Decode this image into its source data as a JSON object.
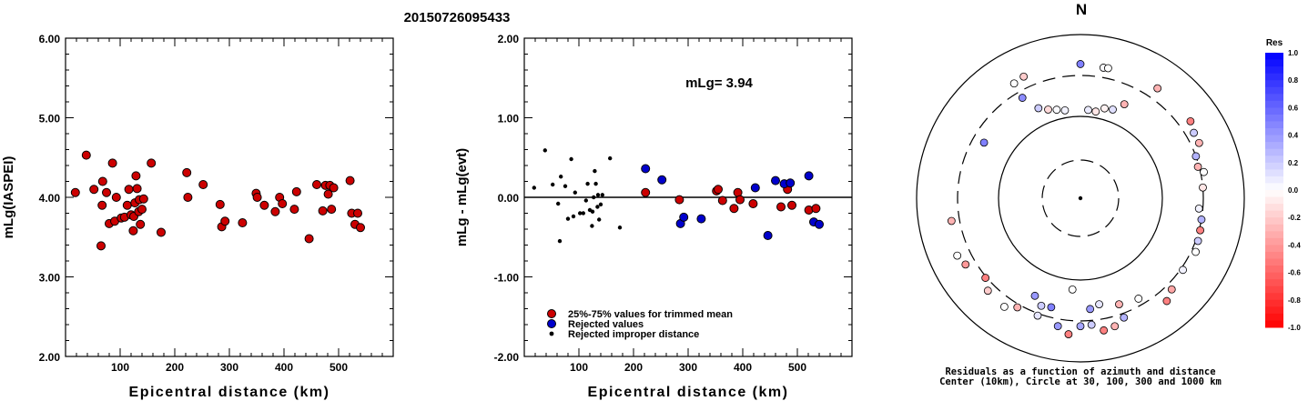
{
  "event_id": "20150726095433",
  "colors": {
    "trimmed": "#cc0000",
    "rejected": "#0000cc",
    "improper": "#000000"
  },
  "chart_data": [
    {
      "type": "scatter",
      "ylabel": "mLg(IASPEI)",
      "xlabel": "Epicentral distance (km)",
      "xlim": [
        0,
        600
      ],
      "ylim": [
        2.0,
        6.0
      ],
      "xticks": [
        "100",
        "200",
        "300",
        "400",
        "500"
      ],
      "yticks": [
        "2.00",
        "3.00",
        "4.00",
        "5.00",
        "6.00"
      ],
      "points": [
        [
          18,
          4.06
        ],
        [
          38,
          4.53
        ],
        [
          52,
          4.1
        ],
        [
          65,
          3.39
        ],
        [
          67,
          3.9
        ],
        [
          68,
          4.2
        ],
        [
          75,
          4.06
        ],
        [
          80,
          3.67
        ],
        [
          86,
          4.43
        ],
        [
          90,
          3.7
        ],
        [
          93,
          4.0
        ],
        [
          102,
          3.74
        ],
        [
          108,
          3.75
        ],
        [
          113,
          3.9
        ],
        [
          116,
          4.1
        ],
        [
          120,
          3.78
        ],
        [
          124,
          3.58
        ],
        [
          125,
          3.76
        ],
        [
          127,
          3.93
        ],
        [
          129,
          4.27
        ],
        [
          131,
          4.11
        ],
        [
          134,
          3.82
        ],
        [
          135,
          3.97
        ],
        [
          137,
          3.66
        ],
        [
          140,
          3.85
        ],
        [
          143,
          3.98
        ],
        [
          157,
          4.43
        ],
        [
          175,
          3.56
        ],
        [
          222,
          4.31
        ],
        [
          224,
          4.0
        ],
        [
          252,
          4.16
        ],
        [
          283,
          3.91
        ],
        [
          286,
          3.63
        ],
        [
          292,
          3.7
        ],
        [
          324,
          3.68
        ],
        [
          349,
          4.05
        ],
        [
          351,
          4.0
        ],
        [
          364,
          3.9
        ],
        [
          384,
          3.82
        ],
        [
          392,
          4.0
        ],
        [
          397,
          3.92
        ],
        [
          419,
          3.85
        ],
        [
          423,
          4.07
        ],
        [
          446,
          3.48
        ],
        [
          460,
          4.16
        ],
        [
          471,
          3.83
        ],
        [
          476,
          4.15
        ],
        [
          481,
          4.04
        ],
        [
          484,
          4.15
        ],
        [
          487,
          3.85
        ],
        [
          491,
          4.12
        ],
        [
          521,
          4.21
        ],
        [
          524,
          3.8
        ],
        [
          530,
          3.66
        ],
        [
          535,
          3.8
        ],
        [
          540,
          3.62
        ]
      ]
    },
    {
      "type": "scatter",
      "ylabel": "mLg - mLg(evt)",
      "xlabel": "Epicentral distance (km)",
      "xlim": [
        0,
        600
      ],
      "ylim": [
        -2.0,
        2.0
      ],
      "xticks": [
        "100",
        "200",
        "300",
        "400",
        "500"
      ],
      "yticks": [
        "-2.00",
        "-1.00",
        "0.00",
        "1.00",
        "2.00"
      ],
      "annotation": "mLg= 3.94",
      "series": [
        {
          "name": "25%-75% values for trimmed mean",
          "points": [
            [
              222,
              0.06
            ],
            [
              284,
              -0.03
            ],
            [
              352,
              0.08
            ],
            [
              355,
              0.1
            ],
            [
              363,
              -0.04
            ],
            [
              384,
              -0.14
            ],
            [
              391,
              0.06
            ],
            [
              395,
              -0.03
            ],
            [
              419,
              -0.08
            ],
            [
              470,
              -0.12
            ],
            [
              480,
              0.16
            ],
            [
              482,
              0.1
            ],
            [
              490,
              -0.1
            ],
            [
              521,
              -0.16
            ],
            [
              534,
              -0.14
            ]
          ]
        },
        {
          "name": "Rejected values",
          "points": [
            [
              222,
              0.36
            ],
            [
              252,
              0.22
            ],
            [
              286,
              -0.33
            ],
            [
              292,
              -0.25
            ],
            [
              324,
              -0.27
            ],
            [
              423,
              0.12
            ],
            [
              446,
              -0.48
            ],
            [
              460,
              0.21
            ],
            [
              476,
              0.17
            ],
            [
              487,
              0.18
            ],
            [
              521,
              0.27
            ],
            [
              530,
              -0.31
            ],
            [
              540,
              -0.34
            ]
          ]
        },
        {
          "name": "Rejected improper distance",
          "points": [
            [
              18,
              0.12
            ],
            [
              38,
              0.59
            ],
            [
              52,
              0.16
            ],
            [
              62,
              -0.08
            ],
            [
              65,
              -0.55
            ],
            [
              67,
              0.26
            ],
            [
              75,
              0.14
            ],
            [
              80,
              -0.27
            ],
            [
              86,
              0.48
            ],
            [
              90,
              -0.24
            ],
            [
              93,
              0.06
            ],
            [
              102,
              -0.2
            ],
            [
              108,
              -0.2
            ],
            [
              113,
              -0.04
            ],
            [
              116,
              0.17
            ],
            [
              120,
              -0.16
            ],
            [
              124,
              -0.36
            ],
            [
              125,
              -0.18
            ],
            [
              127,
              0.0
            ],
            [
              129,
              0.33
            ],
            [
              131,
              0.17
            ],
            [
              134,
              -0.12
            ],
            [
              135,
              0.03
            ],
            [
              137,
              -0.28
            ],
            [
              140,
              -0.09
            ],
            [
              143,
              0.03
            ],
            [
              157,
              0.49
            ],
            [
              175,
              -0.38
            ]
          ]
        }
      ]
    },
    {
      "type": "scatter",
      "title": "N",
      "caption_line1": "Residuals as a function of azimuth and distance",
      "caption_line2": "Center (10km), Circle at 30, 100, 300 and 1000 km",
      "colorbar_title": "Res",
      "colorbar_ticks": [
        "1.0",
        "0.8",
        "0.6",
        "0.4",
        "0.2",
        "0.0",
        "-0.2",
        "-0.4",
        "-0.6",
        "-0.8",
        "-1.0"
      ],
      "rings_km": [
        30,
        100,
        300,
        1000
      ],
      "points_azimuth_distance_residual": [
        [
          5,
          120,
          0.08
        ],
        [
          10,
          118,
          -0.1
        ],
        [
          350,
          122,
          0.05
        ],
        [
          345,
          130,
          0.02
        ],
        [
          15,
          135,
          -0.05
        ],
        [
          20,
          140,
          0.12
        ],
        [
          340,
          140,
          -0.15
        ],
        [
          335,
          160,
          0.2
        ],
        [
          25,
          180,
          -0.3
        ],
        [
          330,
          250,
          0.45
        ],
        [
          300,
          220,
          0.5
        ],
        [
          0,
          420,
          0.5
        ],
        [
          10,
          400,
          0.02
        ],
        [
          12,
          405,
          0.0
        ],
        [
          330,
          400,
          0.0
        ],
        [
          335,
          420,
          -0.2
        ],
        [
          35,
          420,
          -0.3
        ],
        [
          55,
          420,
          -0.5
        ],
        [
          60,
          380,
          0.2
        ],
        [
          65,
          380,
          -0.3
        ],
        [
          70,
          300,
          0.3
        ],
        [
          75,
          290,
          -0.3
        ],
        [
          78,
          330,
          0.0
        ],
        [
          85,
          300,
          -0.1
        ],
        [
          95,
          270,
          0.05
        ],
        [
          100,
          300,
          0.3
        ],
        [
          105,
          310,
          -0.5
        ],
        [
          110,
          320,
          0.2
        ],
        [
          115,
          340,
          0.0
        ],
        [
          125,
          320,
          0.05
        ],
        [
          135,
          360,
          -0.35
        ],
        [
          140,
          420,
          -0.5
        ],
        [
          160,
          340,
          0.3
        ],
        [
          165,
          400,
          -0.3
        ],
        [
          170,
          420,
          -0.5
        ],
        [
          175,
          340,
          0.2
        ],
        [
          180,
          350,
          0.35
        ],
        [
          185,
          450,
          -0.5
        ],
        [
          190,
          370,
          0.4
        ],
        [
          200,
          320,
          0.1
        ],
        [
          210,
          330,
          -0.3
        ],
        [
          215,
          400,
          0.0
        ],
        [
          225,
          380,
          -0.2
        ],
        [
          230,
          310,
          -0.5
        ],
        [
          240,
          400,
          -0.4
        ],
        [
          245,
          440,
          0.0
        ],
        [
          260,
          380,
          -0.3
        ],
        [
          185,
          130,
          0.0
        ],
        [
          175,
          220,
          0.4
        ],
        [
          170,
          200,
          0.1
        ],
        [
          160,
          230,
          -0.3
        ],
        [
          150,
          250,
          0.0
        ],
        [
          205,
          200,
          0.4
        ],
        [
          200,
          240,
          0.2
        ],
        [
          195,
          230,
          0.5
        ]
      ]
    }
  ]
}
